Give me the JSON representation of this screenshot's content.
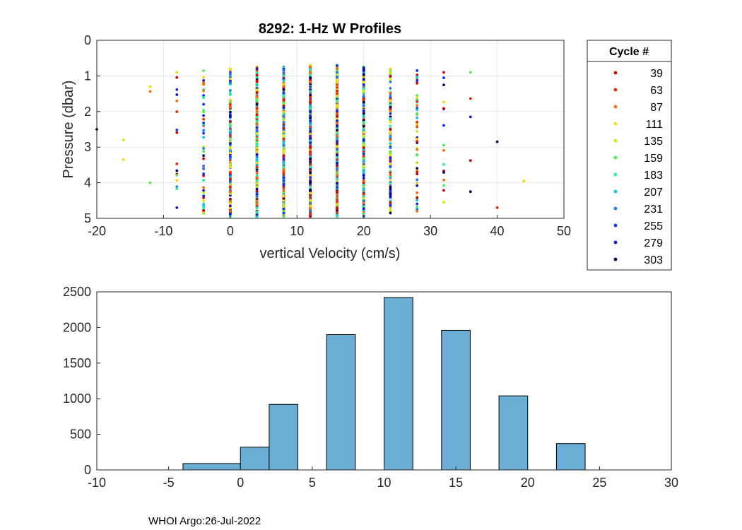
{
  "chart_data": [
    {
      "type": "scatter",
      "title": "8292: 1-Hz W Profiles",
      "xlabel": "vertical Velocity (cm/s)",
      "ylabel": "Pressure (dbar)",
      "xlim": [
        -20,
        50
      ],
      "ylim": [
        0,
        5
      ],
      "y_reversed": true,
      "grid": true,
      "xticks": [
        "-20",
        "-10",
        "0",
        "10",
        "20",
        "30",
        "40",
        "50"
      ],
      "yticks": [
        "0",
        "1",
        "2",
        "3",
        "4",
        "5"
      ],
      "legend": {
        "title": "Cycle #",
        "placement": "outside-right",
        "entries": [
          "39",
          "63",
          "87",
          "111",
          "135",
          "159",
          "183",
          "207",
          "231",
          "255",
          "279",
          "303"
        ],
        "colors": [
          "#d40000",
          "#ee2200",
          "#ff6a00",
          "#ffd700",
          "#c4f000",
          "#4cf04c",
          "#1ef0a0",
          "#00c8e6",
          "#1e78ff",
          "#0a2cff",
          "#1010d8",
          "#00005a"
        ]
      },
      "columns": [
        {
          "x": -20,
          "ymin": 2.5,
          "ymax": 2.5,
          "n": 1
        },
        {
          "x": -16,
          "ymin": 2.8,
          "ymax": 3.35,
          "n": 2
        },
        {
          "x": -12,
          "ymin": 1.3,
          "ymax": 4.0,
          "n": 3
        },
        {
          "x": -8,
          "ymin": 0.9,
          "ymax": 4.7,
          "n": 16
        },
        {
          "x": -4,
          "ymin": 0.85,
          "ymax": 4.85,
          "n": 50
        },
        {
          "x": 0,
          "ymin": 0.8,
          "ymax": 4.95,
          "n": 170
        },
        {
          "x": 4,
          "ymin": 0.75,
          "ymax": 4.95,
          "n": 330
        },
        {
          "x": 8,
          "ymin": 0.75,
          "ymax": 4.95,
          "n": 420
        },
        {
          "x": 12,
          "ymin": 0.7,
          "ymax": 4.95,
          "n": 430
        },
        {
          "x": 16,
          "ymin": 0.7,
          "ymax": 4.95,
          "n": 420
        },
        {
          "x": 20,
          "ymin": 0.75,
          "ymax": 4.95,
          "n": 330
        },
        {
          "x": 24,
          "ymin": 0.8,
          "ymax": 4.85,
          "n": 120
        },
        {
          "x": 28,
          "ymin": 0.85,
          "ymax": 4.8,
          "n": 60
        },
        {
          "x": 32,
          "ymin": 0.9,
          "ymax": 4.55,
          "n": 16
        },
        {
          "x": 36,
          "ymin": 0.9,
          "ymax": 4.25,
          "n": 5
        },
        {
          "x": 40,
          "ymin": 2.85,
          "ymax": 4.7,
          "n": 2
        },
        {
          "x": 44,
          "ymin": 3.95,
          "ymax": 3.95,
          "n": 1
        }
      ]
    },
    {
      "type": "bar",
      "title": "",
      "xlabel": "",
      "ylabel": "",
      "xlim": [
        -10,
        30
      ],
      "ylim": [
        0,
        2500
      ],
      "grid": false,
      "bar_color": "#6aaed6",
      "bin_width": 4,
      "xticks": [
        "-10",
        "-5",
        "0",
        "5",
        "10",
        "15",
        "20",
        "25",
        "30"
      ],
      "yticks": [
        "0",
        "500",
        "1000",
        "1500",
        "2000",
        "2500"
      ],
      "bins": [
        {
          "left": -4,
          "right": 0,
          "value": 90
        },
        {
          "left": 0,
          "right": 2,
          "value": 320
        },
        {
          "left": 2,
          "right": 4,
          "value": 920
        },
        {
          "left": 6,
          "right": 8,
          "value": 1900
        },
        {
          "left": 10,
          "right": 12,
          "value": 2420
        },
        {
          "left": 14,
          "right": 16,
          "value": 1960
        },
        {
          "left": 18,
          "right": 20,
          "value": 1040
        },
        {
          "left": 22,
          "right": 24,
          "value": 370
        }
      ]
    }
  ],
  "footer": "WHOI Argo:26-Jul-2022"
}
